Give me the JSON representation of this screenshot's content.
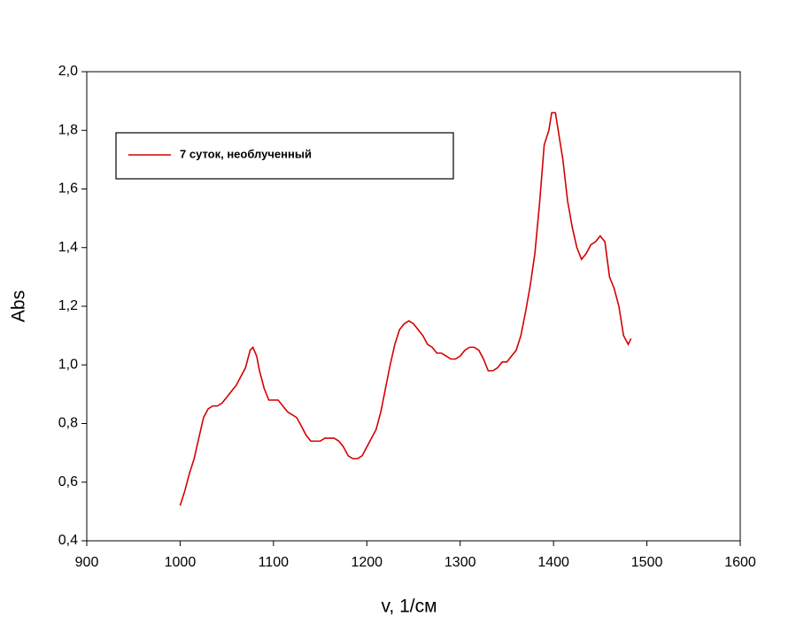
{
  "chart_data": {
    "type": "line",
    "x_label": "v, 1/см",
    "y_label": "Abs",
    "xlim": [
      900,
      1600
    ],
    "xticks": [
      900,
      1000,
      1100,
      1200,
      1300,
      1400,
      1500,
      1600
    ],
    "ylim": [
      0.4,
      2.0
    ],
    "yticks": [
      {
        "value": 0.4,
        "label": "0,4"
      },
      {
        "value": 0.6,
        "label": "0,6"
      },
      {
        "value": 0.8,
        "label": "0,8"
      },
      {
        "value": 1.0,
        "label": "1,0"
      },
      {
        "value": 1.2,
        "label": "1,2"
      },
      {
        "value": 1.4,
        "label": "1,4"
      },
      {
        "value": 1.6,
        "label": "1,6"
      },
      {
        "value": 1.8,
        "label": "1,8"
      },
      {
        "value": 2.0,
        "label": "2,0"
      }
    ],
    "grid": false,
    "legend_position": "upper left",
    "x": [
      1000,
      1005,
      1010,
      1015,
      1020,
      1025,
      1030,
      1035,
      1040,
      1045,
      1050,
      1055,
      1060,
      1065,
      1070,
      1075,
      1078,
      1082,
      1085,
      1090,
      1095,
      1100,
      1105,
      1110,
      1115,
      1120,
      1125,
      1130,
      1135,
      1140,
      1145,
      1150,
      1155,
      1160,
      1165,
      1170,
      1175,
      1180,
      1185,
      1190,
      1195,
      1200,
      1205,
      1210,
      1215,
      1220,
      1225,
      1230,
      1235,
      1240,
      1245,
      1250,
      1255,
      1260,
      1265,
      1270,
      1275,
      1280,
      1285,
      1290,
      1295,
      1300,
      1305,
      1310,
      1315,
      1320,
      1325,
      1330,
      1335,
      1340,
      1345,
      1350,
      1355,
      1360,
      1365,
      1370,
      1375,
      1380,
      1385,
      1390,
      1395,
      1398,
      1402,
      1405,
      1410,
      1415,
      1420,
      1425,
      1430,
      1435,
      1440,
      1445,
      1450,
      1455,
      1460,
      1465,
      1470,
      1475,
      1480,
      1483
    ],
    "series": [
      {
        "name": "7 суток, необлученный",
        "color": "#d40000",
        "values": [
          0.52,
          0.57,
          0.63,
          0.68,
          0.75,
          0.82,
          0.85,
          0.86,
          0.86,
          0.87,
          0.89,
          0.91,
          0.93,
          0.96,
          0.99,
          1.05,
          1.06,
          1.03,
          0.98,
          0.92,
          0.88,
          0.88,
          0.88,
          0.86,
          0.84,
          0.83,
          0.82,
          0.79,
          0.76,
          0.74,
          0.74,
          0.74,
          0.75,
          0.75,
          0.75,
          0.74,
          0.72,
          0.69,
          0.68,
          0.68,
          0.69,
          0.72,
          0.75,
          0.78,
          0.84,
          0.92,
          1.0,
          1.07,
          1.12,
          1.14,
          1.15,
          1.14,
          1.12,
          1.1,
          1.07,
          1.06,
          1.04,
          1.04,
          1.03,
          1.02,
          1.02,
          1.03,
          1.05,
          1.06,
          1.06,
          1.05,
          1.02,
          0.98,
          0.98,
          0.99,
          1.01,
          1.01,
          1.03,
          1.05,
          1.1,
          1.18,
          1.27,
          1.38,
          1.55,
          1.75,
          1.8,
          1.86,
          1.86,
          1.8,
          1.7,
          1.56,
          1.47,
          1.4,
          1.36,
          1.38,
          1.41,
          1.42,
          1.44,
          1.42,
          1.3,
          1.26,
          1.2,
          1.1,
          1.07,
          1.09
        ]
      }
    ]
  }
}
